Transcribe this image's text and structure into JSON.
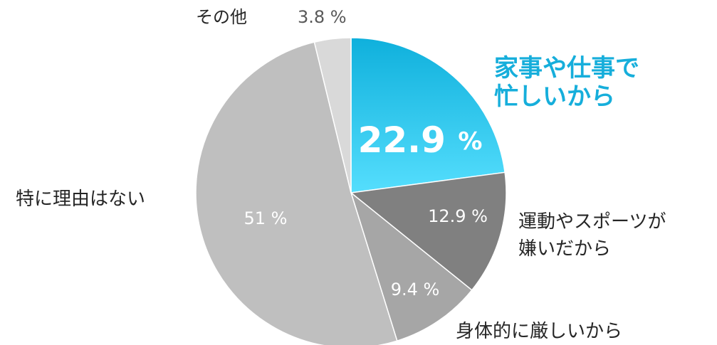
{
  "chart_data": {
    "type": "pie",
    "categories": [
      "家事や仕事で\n忙しいから",
      "運動やスポーツが\n嫌いだから",
      "身体的に厳しいから",
      "特に理由はない",
      "その他"
    ],
    "values": [
      22.9,
      12.9,
      9.4,
      51,
      3.8
    ],
    "value_labels": [
      "22.9 %",
      "12.9 %",
      "9.4 %",
      "51 %",
      "3.8 %"
    ],
    "colors": [
      "#2ec4ee",
      "#808080",
      "#a6a6a6",
      "#bfbfbf",
      "#d9d9d9"
    ]
  }
}
